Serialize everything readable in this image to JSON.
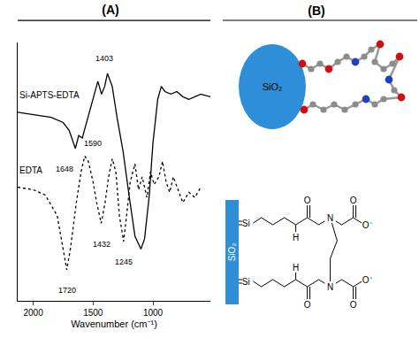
{
  "chart_data": {
    "type": "line",
    "title": "(A)",
    "x_label": "Wavenumber (cm⁻¹)",
    "xlim": [
      2130,
      520
    ],
    "xticks": [
      2000,
      1500,
      1000
    ],
    "ylim": [
      0,
      100
    ],
    "yticks": [],
    "tick_labels": "x",
    "grid": false,
    "series": [
      {
        "name": "Si-APTS-EDTA",
        "color": "#000000",
        "line_style": "solid",
        "x": [
          2130,
          2000,
          1850,
          1750,
          1700,
          1648,
          1620,
          1590,
          1560,
          1500,
          1460,
          1430,
          1403,
          1380,
          1340,
          1300,
          1250,
          1200,
          1150,
          1100,
          1070,
          1030,
          1000,
          960,
          930,
          900,
          850,
          800,
          750,
          700,
          600,
          520
        ],
        "values": [
          73,
          72,
          71,
          69,
          66,
          59,
          64,
          63,
          68,
          78,
          85,
          80,
          83,
          88,
          83,
          71,
          58,
          41,
          25,
          20,
          24,
          41,
          61,
          78,
          83,
          81,
          80,
          81,
          79,
          78,
          80,
          79
        ]
      },
      {
        "name": "EDTA",
        "color": "#000000",
        "line_style": "dot",
        "x": [
          2130,
          2000,
          1900,
          1800,
          1750,
          1720,
          1690,
          1640,
          1600,
          1570,
          1540,
          1500,
          1470,
          1432,
          1400,
          1370,
          1340,
          1310,
          1280,
          1245,
          1220,
          1190,
          1150,
          1120,
          1090,
          1050,
          1020,
          990,
          950,
          920,
          890,
          860,
          830,
          800,
          750,
          700,
          650,
          600
        ],
        "values": [
          44,
          43,
          41,
          33,
          20,
          12,
          20,
          38,
          50,
          56,
          54,
          46,
          38,
          30,
          38,
          48,
          55,
          50,
          33,
          23,
          33,
          46,
          53,
          43,
          48,
          40,
          50,
          45,
          48,
          54,
          46,
          42,
          48,
          44,
          38,
          42,
          40,
          44
        ]
      }
    ],
    "annotations": [
      {
        "text": "1648",
        "x": 1648,
        "y": 51
      },
      {
        "text": "1590",
        "x": 1590,
        "y": 61
      },
      {
        "text": "1403",
        "x": 1403,
        "y": 94
      },
      {
        "text": "1720",
        "x": 1720,
        "y": 4
      },
      {
        "text": "1432",
        "x": 1432,
        "y": 22
      },
      {
        "text": "1245",
        "x": 1245,
        "y": 15
      }
    ]
  },
  "diagram": {
    "title": "(B)",
    "particle": "SiO₂",
    "support": "SiO₂",
    "anchor": "Si",
    "amide_h": "H",
    "amine": "N",
    "oxygen": "O",
    "carboxylate": "O⁻"
  }
}
